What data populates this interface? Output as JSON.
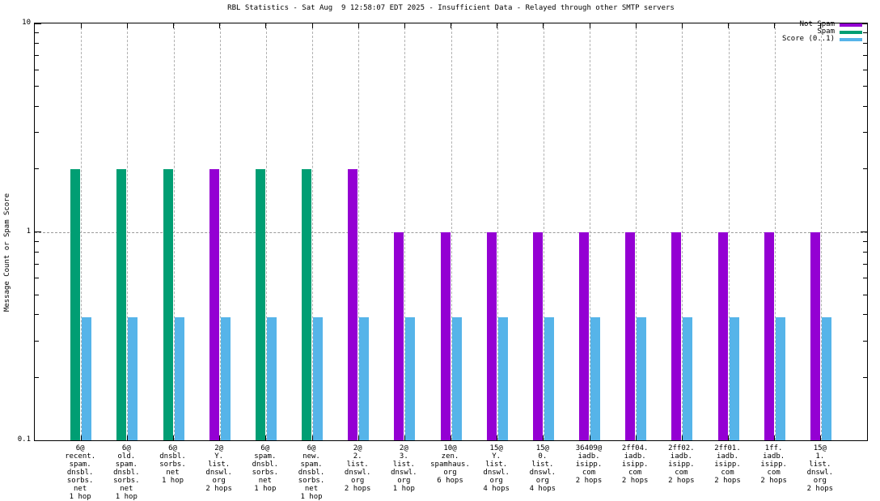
{
  "chart_data": {
    "type": "bar",
    "title": "RBL Statistics - Sat Aug  9 12:58:07 EDT 2025 - Insufficient Data - Relayed through other SMTP servers",
    "ylabel": "Message Count or Spam Score",
    "xlabel": "",
    "yscale": "log",
    "ylim": [
      0.1,
      10
    ],
    "yticks": [
      {
        "value": 10,
        "label": "10"
      },
      {
        "value": 1,
        "label": "1"
      },
      {
        "value": 0.1,
        "label": "0.1"
      }
    ],
    "grid": true,
    "legend_position": "top-right",
    "background_color": "#ffffff",
    "axis_color": "#000000",
    "grid_color": "#a0a0a0",
    "categories": [
      "6@\nrecent.\nspam.\ndnsbl.\nsorbs.\nnet\n1 hop",
      "6@\nold.\nspam.\ndnsbl.\nsorbs.\nnet\n1 hop",
      "6@\ndnsbl.\nsorbs.\nnet\n1 hop",
      "2@\nY.\nlist.\ndnswl.\norg\n2 hops",
      "6@\nspam.\ndnsbl.\nsorbs.\nnet\n1 hop",
      "6@\nnew.\nspam.\ndnsbl.\nsorbs.\nnet\n1 hop",
      "2@\n2.\nlist.\ndnswl.\norg\n2 hops",
      "2@\n3.\nlist.\ndnswl.\norg\n1 hop",
      "10@\nzen.\nspamhaus.\norg\n6 hops",
      "15@\nY.\nlist.\ndnswl.\norg\n4 hops",
      "15@\n0.\nlist.\ndnswl.\norg\n4 hops",
      "36409@\niadb.\nisipp.\ncom\n2 hops",
      "2ff04.\niadb.\nisipp.\ncom\n2 hops",
      "2ff02.\niadb.\nisipp.\ncom\n2 hops",
      "2ff01.\niadb.\nisipp.\ncom\n2 hops",
      "1ff.\niadb.\nisipp.\ncom\n2 hops",
      "15@\n1.\nlist.\ndnswl.\norg\n2 hops"
    ],
    "series": [
      {
        "name": "Not Spam",
        "color": "#9400d3",
        "values": [
          null,
          null,
          null,
          2,
          null,
          null,
          2,
          1,
          1,
          1,
          1,
          1,
          1,
          1,
          1,
          1,
          1
        ]
      },
      {
        "name": "Spam",
        "color": "#009e73",
        "values": [
          2,
          2,
          2,
          null,
          2,
          2,
          null,
          null,
          null,
          null,
          null,
          null,
          null,
          null,
          null,
          null,
          null
        ]
      },
      {
        "name": "Score (0..1)",
        "color": "#56b4e9",
        "values": [
          0.39,
          0.39,
          0.39,
          0.39,
          0.39,
          0.39,
          0.39,
          0.39,
          0.39,
          0.39,
          0.39,
          0.39,
          0.39,
          0.39,
          0.39,
          0.39,
          0.39
        ]
      }
    ]
  }
}
